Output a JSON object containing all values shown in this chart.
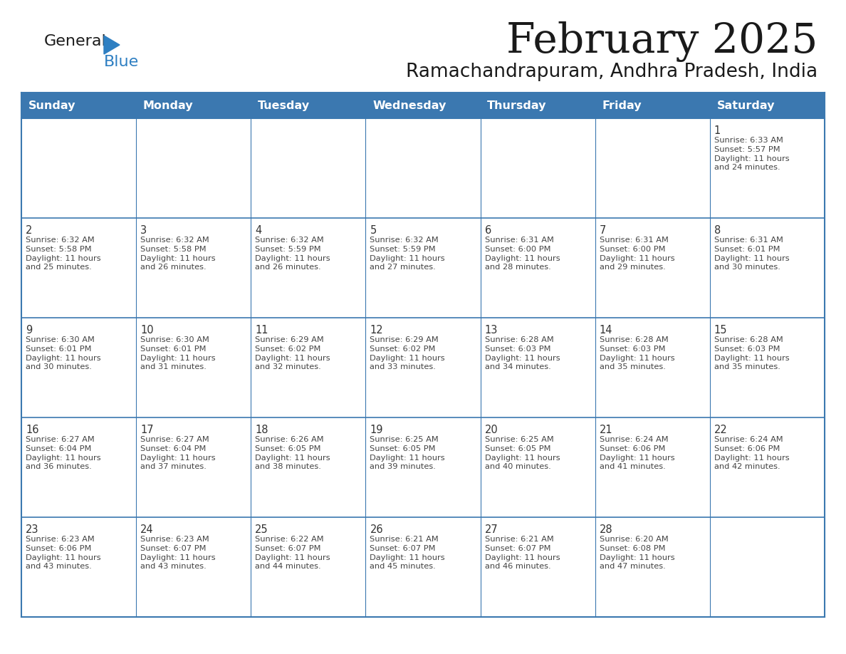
{
  "title": "February 2025",
  "subtitle": "Ramachandrapuram, Andhra Pradesh, India",
  "header_color": "#3b78b0",
  "header_text_color": "#ffffff",
  "border_color": "#3b78b0",
  "day_number_color": "#333333",
  "info_text_color": "#444444",
  "days_of_week": [
    "Sunday",
    "Monday",
    "Tuesday",
    "Wednesday",
    "Thursday",
    "Friday",
    "Saturday"
  ],
  "weeks": [
    [
      {
        "day": "",
        "info": ""
      },
      {
        "day": "",
        "info": ""
      },
      {
        "day": "",
        "info": ""
      },
      {
        "day": "",
        "info": ""
      },
      {
        "day": "",
        "info": ""
      },
      {
        "day": "",
        "info": ""
      },
      {
        "day": "1",
        "info": "Sunrise: 6:33 AM\nSunset: 5:57 PM\nDaylight: 11 hours\nand 24 minutes."
      }
    ],
    [
      {
        "day": "2",
        "info": "Sunrise: 6:32 AM\nSunset: 5:58 PM\nDaylight: 11 hours\nand 25 minutes."
      },
      {
        "day": "3",
        "info": "Sunrise: 6:32 AM\nSunset: 5:58 PM\nDaylight: 11 hours\nand 26 minutes."
      },
      {
        "day": "4",
        "info": "Sunrise: 6:32 AM\nSunset: 5:59 PM\nDaylight: 11 hours\nand 26 minutes."
      },
      {
        "day": "5",
        "info": "Sunrise: 6:32 AM\nSunset: 5:59 PM\nDaylight: 11 hours\nand 27 minutes."
      },
      {
        "day": "6",
        "info": "Sunrise: 6:31 AM\nSunset: 6:00 PM\nDaylight: 11 hours\nand 28 minutes."
      },
      {
        "day": "7",
        "info": "Sunrise: 6:31 AM\nSunset: 6:00 PM\nDaylight: 11 hours\nand 29 minutes."
      },
      {
        "day": "8",
        "info": "Sunrise: 6:31 AM\nSunset: 6:01 PM\nDaylight: 11 hours\nand 30 minutes."
      }
    ],
    [
      {
        "day": "9",
        "info": "Sunrise: 6:30 AM\nSunset: 6:01 PM\nDaylight: 11 hours\nand 30 minutes."
      },
      {
        "day": "10",
        "info": "Sunrise: 6:30 AM\nSunset: 6:01 PM\nDaylight: 11 hours\nand 31 minutes."
      },
      {
        "day": "11",
        "info": "Sunrise: 6:29 AM\nSunset: 6:02 PM\nDaylight: 11 hours\nand 32 minutes."
      },
      {
        "day": "12",
        "info": "Sunrise: 6:29 AM\nSunset: 6:02 PM\nDaylight: 11 hours\nand 33 minutes."
      },
      {
        "day": "13",
        "info": "Sunrise: 6:28 AM\nSunset: 6:03 PM\nDaylight: 11 hours\nand 34 minutes."
      },
      {
        "day": "14",
        "info": "Sunrise: 6:28 AM\nSunset: 6:03 PM\nDaylight: 11 hours\nand 35 minutes."
      },
      {
        "day": "15",
        "info": "Sunrise: 6:28 AM\nSunset: 6:03 PM\nDaylight: 11 hours\nand 35 minutes."
      }
    ],
    [
      {
        "day": "16",
        "info": "Sunrise: 6:27 AM\nSunset: 6:04 PM\nDaylight: 11 hours\nand 36 minutes."
      },
      {
        "day": "17",
        "info": "Sunrise: 6:27 AM\nSunset: 6:04 PM\nDaylight: 11 hours\nand 37 minutes."
      },
      {
        "day": "18",
        "info": "Sunrise: 6:26 AM\nSunset: 6:05 PM\nDaylight: 11 hours\nand 38 minutes."
      },
      {
        "day": "19",
        "info": "Sunrise: 6:25 AM\nSunset: 6:05 PM\nDaylight: 11 hours\nand 39 minutes."
      },
      {
        "day": "20",
        "info": "Sunrise: 6:25 AM\nSunset: 6:05 PM\nDaylight: 11 hours\nand 40 minutes."
      },
      {
        "day": "21",
        "info": "Sunrise: 6:24 AM\nSunset: 6:06 PM\nDaylight: 11 hours\nand 41 minutes."
      },
      {
        "day": "22",
        "info": "Sunrise: 6:24 AM\nSunset: 6:06 PM\nDaylight: 11 hours\nand 42 minutes."
      }
    ],
    [
      {
        "day": "23",
        "info": "Sunrise: 6:23 AM\nSunset: 6:06 PM\nDaylight: 11 hours\nand 43 minutes."
      },
      {
        "day": "24",
        "info": "Sunrise: 6:23 AM\nSunset: 6:07 PM\nDaylight: 11 hours\nand 43 minutes."
      },
      {
        "day": "25",
        "info": "Sunrise: 6:22 AM\nSunset: 6:07 PM\nDaylight: 11 hours\nand 44 minutes."
      },
      {
        "day": "26",
        "info": "Sunrise: 6:21 AM\nSunset: 6:07 PM\nDaylight: 11 hours\nand 45 minutes."
      },
      {
        "day": "27",
        "info": "Sunrise: 6:21 AM\nSunset: 6:07 PM\nDaylight: 11 hours\nand 46 minutes."
      },
      {
        "day": "28",
        "info": "Sunrise: 6:20 AM\nSunset: 6:08 PM\nDaylight: 11 hours\nand 47 minutes."
      },
      {
        "day": "",
        "info": ""
      }
    ]
  ],
  "logo_general_color": "#1a1a1a",
  "logo_blue_color": "#2e7fc2",
  "logo_triangle_color": "#2e7fc2",
  "title_fontsize": 42,
  "subtitle_fontsize": 19,
  "header_fontsize": 11.5,
  "day_number_fontsize": 10.5,
  "info_fontsize": 8.2,
  "grid_color": "#3b78b0",
  "cell_bg": "#ffffff",
  "row_sep_color": "#3b78b0"
}
